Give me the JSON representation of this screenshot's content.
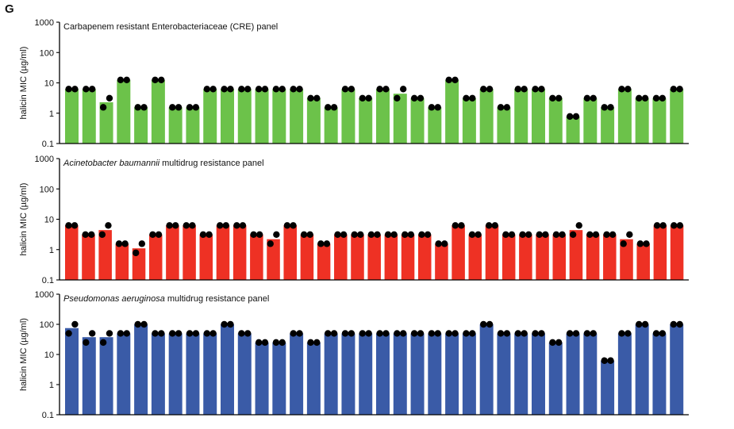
{
  "figure": {
    "panel_label": "G"
  },
  "chart_data": [
    {
      "type": "bar",
      "title": "Carbapenem resistant Enterobacteriaceae (CRE) panel",
      "title_italic": "",
      "title_rest": "Carbapenem resistant Enterobacteriaceae (CRE) panel",
      "ylabel": "halicin MIC (µg/ml)",
      "yscale": "log",
      "ylim": [
        0.1,
        1000
      ],
      "yticks": [
        "0.1",
        "1",
        "10",
        "100",
        "1000"
      ],
      "ytick_values": [
        0.1,
        1,
        10,
        100,
        1000
      ],
      "color": "#6cc24a",
      "values": [
        6.25,
        6.25,
        2.3,
        12.5,
        1.56,
        12.5,
        1.56,
        1.56,
        6.25,
        6.25,
        6.25,
        6.25,
        6.25,
        6.25,
        3.13,
        1.56,
        6.25,
        3.13,
        6.25,
        4.4,
        3.13,
        1.56,
        12.5,
        3.13,
        6.25,
        1.56,
        6.25,
        6.25,
        3.13,
        0.78,
        3.13,
        1.56,
        6.25,
        3.13,
        3.13,
        6.25
      ],
      "points": [
        [
          6.25,
          6.25
        ],
        [
          6.25,
          6.25
        ],
        [
          1.56,
          3.13
        ],
        [
          12.5,
          12.5
        ],
        [
          1.56,
          1.56
        ],
        [
          12.5,
          12.5
        ],
        [
          1.56,
          1.56
        ],
        [
          1.56,
          1.56
        ],
        [
          6.25,
          6.25
        ],
        [
          6.25,
          6.25
        ],
        [
          6.25,
          6.25
        ],
        [
          6.25,
          6.25
        ],
        [
          6.25,
          6.25
        ],
        [
          6.25,
          6.25
        ],
        [
          3.13,
          3.13
        ],
        [
          1.56,
          1.56
        ],
        [
          6.25,
          6.25
        ],
        [
          3.13,
          3.13
        ],
        [
          6.25,
          6.25
        ],
        [
          3.13,
          6.25
        ],
        [
          3.13,
          3.13
        ],
        [
          1.56,
          1.56
        ],
        [
          12.5,
          12.5
        ],
        [
          3.13,
          3.13
        ],
        [
          6.25,
          6.25
        ],
        [
          1.56,
          1.56
        ],
        [
          6.25,
          6.25
        ],
        [
          6.25,
          6.25
        ],
        [
          3.13,
          3.13
        ],
        [
          0.78,
          0.78
        ],
        [
          3.13,
          3.13
        ],
        [
          1.56,
          1.56
        ],
        [
          6.25,
          6.25
        ],
        [
          3.13,
          3.13
        ],
        [
          3.13,
          3.13
        ],
        [
          6.25,
          6.25
        ]
      ]
    },
    {
      "type": "bar",
      "title": "Acinetobacter baumannii multidrug resistance panel",
      "title_italic": "Acinetobacter baumannii",
      "title_rest": " multidrug resistance panel",
      "ylabel": "halicin MIC (µg/ml)",
      "yscale": "log",
      "ylim": [
        0.1,
        1000
      ],
      "yticks": [
        "0.1",
        "1",
        "10",
        "100",
        "1000"
      ],
      "ytick_values": [
        0.1,
        1,
        10,
        100,
        1000
      ],
      "color": "#ee3124",
      "values": [
        6.25,
        3.13,
        4.4,
        1.56,
        1.1,
        3.13,
        6.25,
        6.25,
        3.13,
        6.25,
        6.25,
        3.13,
        2.2,
        6.25,
        3.13,
        1.56,
        3.13,
        3.13,
        3.13,
        3.13,
        3.13,
        3.13,
        1.56,
        6.25,
        3.13,
        6.25,
        3.13,
        3.13,
        3.13,
        3.13,
        4.4,
        3.13,
        3.13,
        2.2,
        1.56,
        6.25,
        6.25
      ],
      "points": [
        [
          6.25,
          6.25
        ],
        [
          3.13,
          3.13
        ],
        [
          3.13,
          6.25
        ],
        [
          1.56,
          1.56
        ],
        [
          0.78,
          1.56
        ],
        [
          3.13,
          3.13
        ],
        [
          6.25,
          6.25
        ],
        [
          6.25,
          6.25
        ],
        [
          3.13,
          3.13
        ],
        [
          6.25,
          6.25
        ],
        [
          6.25,
          6.25
        ],
        [
          3.13,
          3.13
        ],
        [
          1.56,
          3.13
        ],
        [
          6.25,
          6.25
        ],
        [
          3.13,
          3.13
        ],
        [
          1.56,
          1.56
        ],
        [
          3.13,
          3.13
        ],
        [
          3.13,
          3.13
        ],
        [
          3.13,
          3.13
        ],
        [
          3.13,
          3.13
        ],
        [
          3.13,
          3.13
        ],
        [
          3.13,
          3.13
        ],
        [
          1.56,
          1.56
        ],
        [
          6.25,
          6.25
        ],
        [
          3.13,
          3.13
        ],
        [
          6.25,
          6.25
        ],
        [
          3.13,
          3.13
        ],
        [
          3.13,
          3.13
        ],
        [
          3.13,
          3.13
        ],
        [
          3.13,
          3.13
        ],
        [
          3.13,
          6.25
        ],
        [
          3.13,
          3.13
        ],
        [
          3.13,
          3.13
        ],
        [
          1.56,
          3.13
        ],
        [
          1.56,
          1.56
        ],
        [
          6.25,
          6.25
        ],
        [
          6.25,
          6.25
        ]
      ]
    },
    {
      "type": "bar",
      "title": "Pseudomonas aeruginosa multidrug resistance panel",
      "title_italic": "Pseudomonas aeruginosa",
      "title_rest": " multidrug resistance panel",
      "ylabel": "halicin MIC (µg/ml)",
      "yscale": "log",
      "ylim": [
        0.1,
        1000
      ],
      "yticks": [
        "0.1",
        "1",
        "10",
        "100",
        "1000"
      ],
      "ytick_values": [
        0.1,
        1,
        10,
        100,
        1000
      ],
      "color": "#3a5ba7",
      "values": [
        75,
        37.5,
        37.5,
        50,
        100,
        50,
        50,
        50,
        50,
        100,
        50,
        25,
        25,
        50,
        25,
        50,
        50,
        50,
        50,
        50,
        50,
        50,
        50,
        50,
        100,
        50,
        50,
        50,
        25,
        50,
        50,
        6.25,
        50,
        100,
        50,
        100
      ],
      "points": [
        [
          50,
          100
        ],
        [
          25,
          50
        ],
        [
          25,
          50
        ],
        [
          50,
          50
        ],
        [
          100,
          100
        ],
        [
          50,
          50
        ],
        [
          50,
          50
        ],
        [
          50,
          50
        ],
        [
          50,
          50
        ],
        [
          100,
          100
        ],
        [
          50,
          50
        ],
        [
          25,
          25
        ],
        [
          25,
          25
        ],
        [
          50,
          50
        ],
        [
          25,
          25
        ],
        [
          50,
          50
        ],
        [
          50,
          50
        ],
        [
          50,
          50
        ],
        [
          50,
          50
        ],
        [
          50,
          50
        ],
        [
          50,
          50
        ],
        [
          50,
          50
        ],
        [
          50,
          50
        ],
        [
          50,
          50
        ],
        [
          100,
          100
        ],
        [
          50,
          50
        ],
        [
          50,
          50
        ],
        [
          50,
          50
        ],
        [
          25,
          25
        ],
        [
          50,
          50
        ],
        [
          50,
          50
        ],
        [
          6.25,
          6.25
        ],
        [
          50,
          50
        ],
        [
          100,
          100
        ],
        [
          50,
          50
        ],
        [
          100,
          100
        ]
      ]
    }
  ]
}
